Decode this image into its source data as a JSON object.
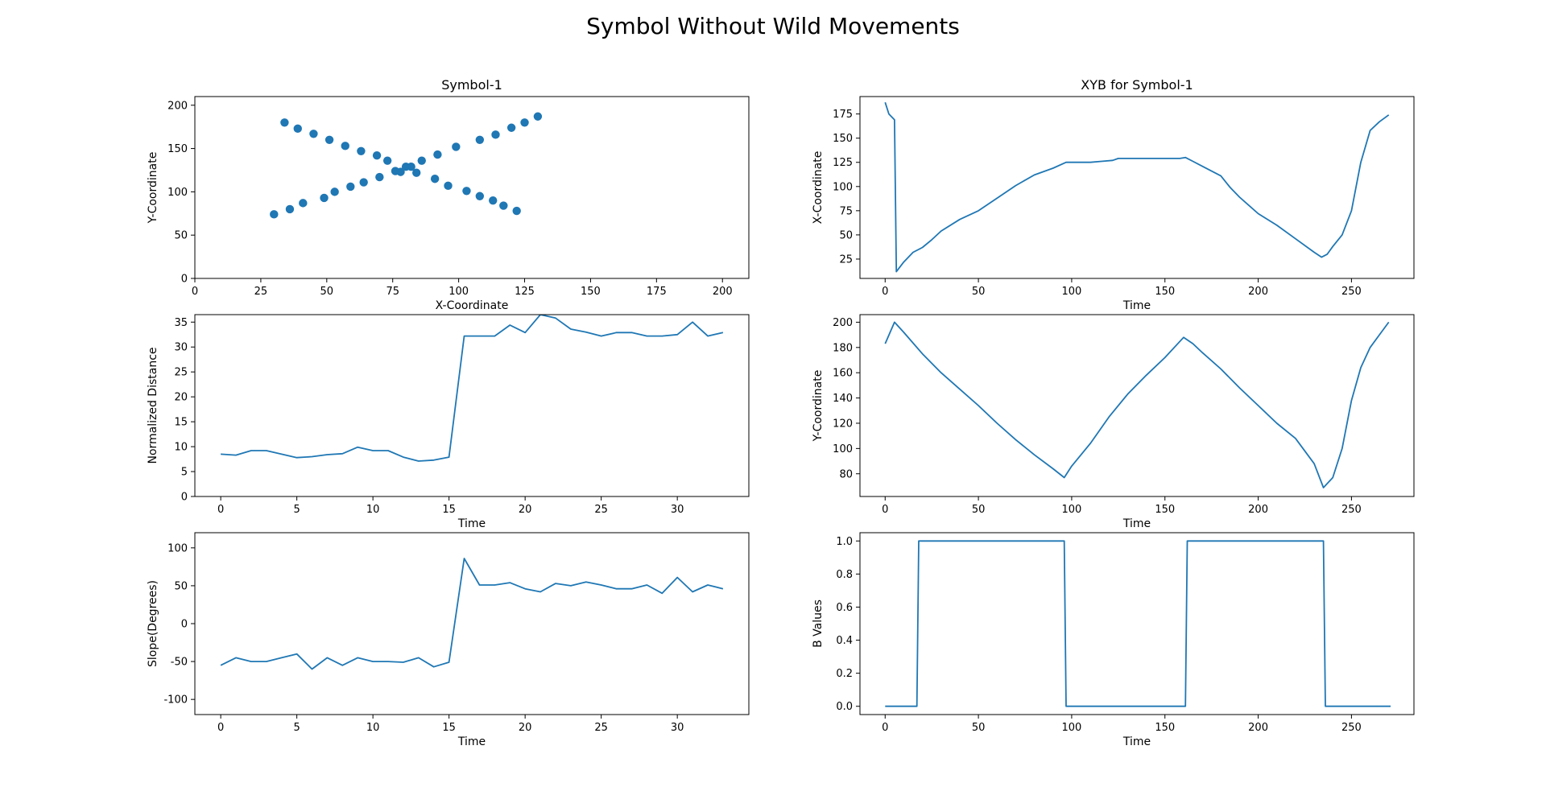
{
  "figure": {
    "suptitle": "Symbol Without Wild Movements"
  },
  "colors": {
    "series": "#1f77b4",
    "axes": "#000000",
    "background": "#ffffff"
  },
  "chart_data": [
    {
      "id": "symbol",
      "type": "scatter",
      "title": "Symbol-1",
      "xlabel": "X-Coordinate",
      "ylabel": "Y-Coordinate",
      "xlim": [
        0,
        210
      ],
      "ylim": [
        0,
        210
      ],
      "xticks": [
        0,
        25,
        50,
        75,
        100,
        125,
        150,
        175,
        200
      ],
      "yticks": [
        0,
        50,
        100,
        150,
        200
      ],
      "grid": false,
      "x": [
        34,
        39,
        45,
        51,
        57,
        63,
        69,
        73,
        78,
        82,
        84,
        91,
        96,
        103,
        108,
        113,
        117,
        122,
        30,
        36,
        41,
        49,
        53,
        59,
        64,
        70,
        76,
        80,
        86,
        92,
        99,
        108,
        114,
        120,
        125,
        130
      ],
      "y": [
        180,
        173,
        167,
        160,
        153,
        147,
        142,
        136,
        123,
        129,
        122,
        115,
        107,
        101,
        95,
        90,
        84,
        78,
        74,
        80,
        87,
        93,
        100,
        106,
        111,
        117,
        124,
        129,
        136,
        143,
        152,
        160,
        166,
        174,
        180,
        187
      ]
    },
    {
      "id": "distance",
      "type": "line",
      "title": "",
      "xlabel": "Time",
      "ylabel": "Normalized Distance",
      "xlim": [
        -1.7,
        34.7
      ],
      "ylim": [
        0,
        36.5
      ],
      "xticks": [
        0,
        5,
        10,
        15,
        20,
        25,
        30
      ],
      "yticks": [
        0,
        5,
        10,
        15,
        20,
        25,
        30,
        35
      ],
      "grid": false,
      "x": [
        0,
        1,
        2,
        3,
        4,
        5,
        6,
        7,
        8,
        9,
        10,
        11,
        12,
        13,
        14,
        15,
        16,
        17,
        18,
        19,
        20,
        21,
        22,
        23,
        24,
        25,
        26,
        27,
        28,
        29,
        30,
        31,
        32,
        33
      ],
      "y": [
        8.5,
        8.3,
        9.2,
        9.2,
        8.5,
        7.8,
        8.0,
        8.4,
        8.6,
        9.9,
        9.2,
        9.2,
        7.9,
        7.1,
        7.3,
        7.9,
        32.2,
        32.2,
        32.2,
        34.4,
        32.9,
        36.5,
        35.8,
        33.6,
        33.0,
        32.2,
        32.9,
        32.9,
        32.2,
        32.2,
        32.5,
        35.0,
        32.2,
        32.9
      ]
    },
    {
      "id": "slope",
      "type": "line",
      "title": "",
      "xlabel": "Time",
      "ylabel": "Slope(Degrees)",
      "xlim": [
        -1.7,
        34.7
      ],
      "ylim": [
        -120,
        120
      ],
      "xticks": [
        0,
        5,
        10,
        15,
        20,
        25,
        30
      ],
      "yticks": [
        -100,
        -50,
        0,
        50,
        100
      ],
      "grid": false,
      "x": [
        0,
        1,
        2,
        3,
        4,
        5,
        6,
        7,
        8,
        9,
        10,
        11,
        12,
        13,
        14,
        15,
        16,
        17,
        18,
        19,
        20,
        21,
        22,
        23,
        24,
        25,
        26,
        27,
        28,
        29,
        30,
        31,
        32,
        33
      ],
      "y": [
        -55,
        -45,
        -50,
        -50,
        -45,
        -40,
        -60,
        -45,
        -55,
        -45,
        -50,
        -50,
        -51,
        -45,
        -57,
        -51,
        86,
        51,
        51,
        54,
        46,
        42,
        53,
        50,
        55,
        51,
        46,
        46,
        51,
        40,
        61,
        42,
        51,
        46
      ]
    },
    {
      "id": "xcoord",
      "type": "line",
      "title": "XYB for Symbol-1",
      "xlabel": "Time",
      "ylabel": "X-Coordinate",
      "xlim": [
        -13.5,
        283.5
      ],
      "ylim": [
        5,
        193
      ],
      "xticks": [
        0,
        50,
        100,
        150,
        200,
        250
      ],
      "yticks": [
        25,
        50,
        75,
        100,
        125,
        150,
        175
      ],
      "grid": false,
      "x": [
        0,
        2,
        5,
        6,
        10,
        15,
        20,
        25,
        30,
        40,
        50,
        60,
        70,
        80,
        90,
        97,
        100,
        110,
        116,
        122,
        125,
        130,
        140,
        150,
        158,
        161,
        165,
        170,
        180,
        185,
        190,
        200,
        210,
        220,
        230,
        234,
        237,
        240,
        245,
        250,
        255,
        260,
        265,
        270
      ],
      "y": [
        187,
        175,
        169,
        12,
        22,
        32,
        37,
        45,
        54,
        66,
        75,
        88,
        101,
        112,
        119,
        125,
        125,
        125,
        126,
        127,
        129,
        129,
        129,
        129,
        129,
        130,
        126,
        121,
        111,
        99,
        89,
        72,
        60,
        46,
        32,
        27,
        30,
        38,
        50,
        75,
        125,
        158,
        167,
        174
      ]
    },
    {
      "id": "ycoord",
      "type": "line",
      "title": "",
      "xlabel": "Time",
      "ylabel": "Y-Coordinate",
      "xlim": [
        -13.5,
        283.5
      ],
      "ylim": [
        62,
        206
      ],
      "xticks": [
        0,
        50,
        100,
        150,
        200,
        250
      ],
      "yticks": [
        80,
        100,
        120,
        140,
        160,
        180,
        200
      ],
      "grid": false,
      "x": [
        0,
        5,
        10,
        20,
        30,
        40,
        50,
        60,
        70,
        80,
        90,
        96,
        100,
        110,
        120,
        130,
        140,
        150,
        160,
        165,
        170,
        180,
        190,
        200,
        210,
        220,
        230,
        235,
        240,
        245,
        250,
        255,
        260,
        265,
        270
      ],
      "y": [
        183,
        200,
        192,
        175,
        160,
        147,
        134,
        120,
        107,
        95,
        84,
        77,
        86,
        104,
        125,
        143,
        158,
        172,
        188,
        183,
        176,
        163,
        148,
        134,
        120,
        108,
        88,
        69,
        77,
        100,
        138,
        164,
        180,
        190,
        200
      ]
    },
    {
      "id": "bvalues",
      "type": "line",
      "title": "",
      "xlabel": "Time",
      "ylabel": "B Values",
      "xlim": [
        -13.5,
        283.5
      ],
      "ylim": [
        -0.05,
        1.05
      ],
      "xticks": [
        0,
        50,
        100,
        150,
        200,
        250
      ],
      "yticks": [
        0.0,
        0.2,
        0.4,
        0.6,
        0.8,
        1.0
      ],
      "ytick_format": "1dp",
      "grid": false,
      "x": [
        0,
        17,
        18,
        96,
        97,
        161,
        162,
        235,
        236,
        271
      ],
      "y": [
        0,
        0,
        1,
        1,
        0,
        0,
        1,
        1,
        0,
        0
      ]
    }
  ]
}
